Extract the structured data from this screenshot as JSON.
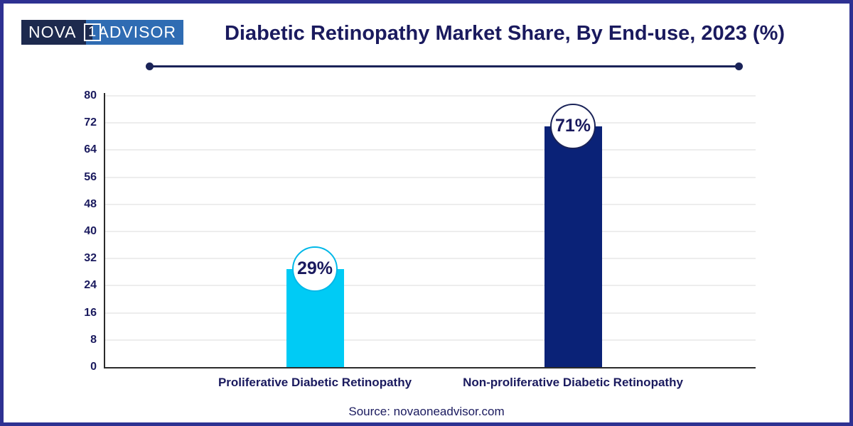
{
  "logo": {
    "part1": "NOVA",
    "part2": "1",
    "part3": "ADVISOR"
  },
  "header": {
    "title": "Diabetic Retinopathy Market Share, By End-use, 2023 (%)"
  },
  "chart_data": {
    "type": "bar",
    "title": "Diabetic Retinopathy Market Share, By End-use, 2023 (%)",
    "categories": [
      "Proliferative Diabetic Retinopathy",
      "Non-proliferative Diabetic Retinopathy"
    ],
    "values": [
      29,
      71
    ],
    "value_labels": [
      "29%",
      "71%"
    ],
    "bar_colors": [
      "#00CBF5",
      "#0A2277"
    ],
    "badge_border_colors": [
      "#00B8E8",
      "#1A2358"
    ],
    "yticks": [
      0,
      8,
      16,
      24,
      32,
      40,
      48,
      56,
      64,
      72,
      80
    ],
    "ylim": [
      0,
      80
    ],
    "xlabel": "",
    "ylabel": "",
    "grid": true,
    "legend": "none"
  },
  "footer": {
    "source": "Source: novaoneadvisor.com"
  },
  "colors": {
    "frame_border": "#2E3192",
    "text_navy": "#1A1A5E",
    "logo_dark": "#1D2A4E",
    "logo_light": "#2F6CB3",
    "axis": "#2B2B2B",
    "gridline": "#EDEDED"
  }
}
